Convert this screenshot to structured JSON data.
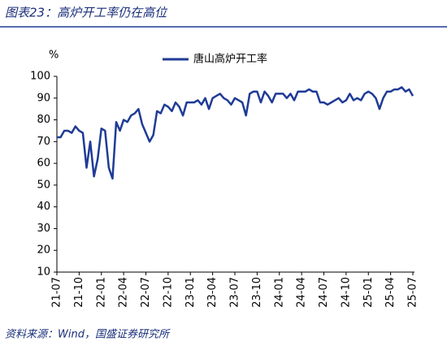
{
  "title": "图表23：高炉开工率仍在高位",
  "source": "资料来源：Wind，国盛证券研究所",
  "chart_data": {
    "type": "line",
    "y_unit": "%",
    "categories": [
      "21-07",
      null,
      null,
      null,
      null,
      null,
      "21-10",
      null,
      null,
      null,
      null,
      null,
      "22-01",
      null,
      null,
      null,
      null,
      null,
      "22-04",
      null,
      null,
      null,
      null,
      null,
      "22-07",
      null,
      null,
      null,
      null,
      null,
      "22-10",
      null,
      null,
      null,
      null,
      null,
      "23-01",
      null,
      null,
      null,
      null,
      null,
      "23-04",
      null,
      null,
      null,
      null,
      null,
      "23-07",
      null,
      null,
      null,
      null,
      null,
      "23-10",
      null,
      null,
      null,
      null,
      null,
      "24-01",
      null,
      null,
      null,
      null,
      null,
      "24-04",
      null,
      null,
      null,
      null,
      null,
      "24-07",
      null,
      null,
      null,
      null,
      null,
      "24-10",
      null,
      null,
      null,
      null,
      null,
      "25-01",
      null,
      null,
      null,
      null,
      null,
      "25-04",
      null,
      null,
      null,
      null,
      null,
      "25-07"
    ],
    "series": [
      {
        "name": "唐山高炉开工率",
        "color": "#1f3b96",
        "values": [
          72,
          72,
          75,
          75,
          74,
          77,
          75,
          74,
          58,
          70,
          54,
          62,
          76,
          75,
          58,
          53,
          79,
          75,
          80,
          79,
          82,
          83,
          85,
          78,
          74,
          70,
          73,
          84,
          83,
          87,
          86,
          84,
          88,
          86,
          82,
          88,
          88,
          88,
          89,
          87,
          90,
          85,
          90,
          91,
          92,
          90,
          89,
          87,
          90,
          89,
          88,
          82,
          92,
          93,
          93,
          88,
          93,
          91,
          88,
          92,
          92,
          92,
          90,
          92,
          89,
          93,
          93,
          93,
          94,
          93,
          93,
          88,
          88,
          87,
          88,
          89,
          90,
          88,
          89,
          92,
          89,
          90,
          89,
          92,
          93,
          92,
          90,
          85,
          90,
          93,
          93,
          94,
          94,
          95,
          93,
          94,
          91
        ]
      }
    ],
    "ylim": [
      10,
      100
    ],
    "yticks": [
      10,
      20,
      30,
      40,
      50,
      60,
      70,
      80,
      90,
      100
    ],
    "legend": "top"
  }
}
